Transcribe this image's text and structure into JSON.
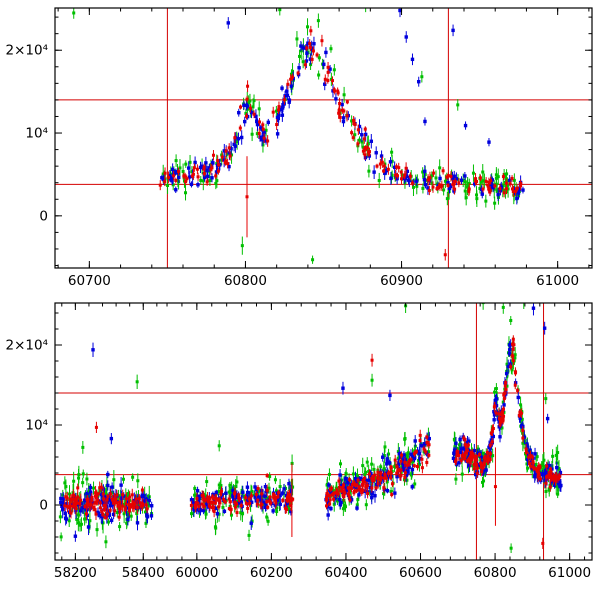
{
  "figure": {
    "bg": "#ffffff",
    "accent_red": "#d40000",
    "axis_color": "#000000"
  },
  "series": [
    {
      "name": "green",
      "color": "#00bf00",
      "sigma_scale": 1.7,
      "err_scale": 1.25,
      "size": 3
    },
    {
      "name": "blue",
      "color": "#0000dd",
      "sigma_scale": 1.1,
      "err_scale": 1.0,
      "size": 3.4
    },
    {
      "name": "red",
      "color": "#e60000",
      "sigma_scale": 0.75,
      "err_scale": 0.8,
      "size": 3
    }
  ],
  "chart_data": [
    {
      "type": "scatter",
      "panel": "top",
      "title": "",
      "x_segments": [
        {
          "xmin": 60678,
          "xmax": 61022,
          "f0": 0,
          "f1": 1
        }
      ],
      "x_ticks": [
        {
          "v": 60700,
          "label": "60700"
        },
        {
          "v": 60800,
          "label": "60800"
        },
        {
          "v": 60900,
          "label": "60900"
        },
        {
          "v": 61000,
          "label": "61000"
        }
      ],
      "x_minor_step": 20,
      "y": {
        "min": -6300,
        "max": 25100,
        "minor_step": 2000,
        "ticks": [
          {
            "v": 0,
            "label": "0"
          },
          {
            "v": 10000,
            "label": "10⁴"
          },
          {
            "v": 20000,
            "label": "2×10⁴"
          }
        ]
      },
      "ref_lines": {
        "horizontal": [
          14000,
          3800
        ],
        "vertical": [
          60750,
          60930
        ]
      },
      "seed": 7,
      "clusters": [
        {
          "x0": 60745,
          "x1": 60978,
          "n": 165,
          "sigma": 480,
          "err": [
            350,
            900
          ],
          "anchors": [
            [
              60745,
              4600
            ],
            [
              60762,
              4800
            ],
            [
              60775,
              5200
            ],
            [
              60785,
              6200
            ],
            [
              60792,
              8500
            ],
            [
              60797,
              11500
            ],
            [
              60801,
              13300
            ],
            [
              60805,
              11800
            ],
            [
              60810,
              9800
            ],
            [
              60816,
              10600
            ],
            [
              60822,
              12800
            ],
            [
              60828,
              15200
            ],
            [
              60834,
              17800
            ],
            [
              60839,
              20300
            ],
            [
              60843,
              20900
            ],
            [
              60847,
              19900
            ],
            [
              60852,
              17600
            ],
            [
              60858,
              14800
            ],
            [
              60864,
              12200
            ],
            [
              60871,
              9900
            ],
            [
              60878,
              8100
            ],
            [
              60885,
              6600
            ],
            [
              60892,
              5600
            ],
            [
              60900,
              4800
            ],
            [
              60910,
              4300
            ],
            [
              60922,
              4000
            ],
            [
              60935,
              3900
            ],
            [
              60950,
              3700
            ],
            [
              60965,
              3500
            ],
            [
              60978,
              3400
            ]
          ]
        }
      ],
      "outliers": {
        "green": [
          [
            60690,
            24500,
            700
          ],
          [
            60822,
            24900,
            700
          ],
          [
            60877,
            25400,
            800
          ],
          [
            60913,
            16800,
            700
          ],
          [
            60936,
            13400,
            700
          ],
          [
            60798,
            -3600,
            1100
          ],
          [
            60843,
            -5300,
            500
          ]
        ],
        "blue": [
          [
            60789,
            23300,
            700
          ],
          [
            60800,
            25900,
            800
          ],
          [
            60899,
            24800,
            800
          ],
          [
            60903,
            21600,
            700
          ],
          [
            60907,
            18900,
            700
          ],
          [
            60911,
            16200,
            600
          ],
          [
            60915,
            11400,
            500
          ],
          [
            60933,
            22400,
            700
          ],
          [
            60941,
            10900,
            500
          ],
          [
            60956,
            8900,
            500
          ]
        ],
        "red": [
          [
            60801,
            2300,
            4900
          ],
          [
            60928,
            -4700,
            700
          ]
        ]
      }
    },
    {
      "type": "scatter",
      "panel": "bottom",
      "title": "",
      "x_segments": [
        {
          "xmin": 58140,
          "xmax": 58470,
          "f0": 0,
          "f1": 0.2086
        },
        {
          "xmin": 59920,
          "xmax": 61060,
          "f0": 0.2086,
          "f1": 1
        }
      ],
      "x_ticks": [
        {
          "v": 58200,
          "label": "58200"
        },
        {
          "v": 58400,
          "label": "58400"
        },
        {
          "v": 60000,
          "label": "60000"
        },
        {
          "v": 60200,
          "label": "60200"
        },
        {
          "v": 60400,
          "label": "60400"
        },
        {
          "v": 60600,
          "label": "60600"
        },
        {
          "v": 60800,
          "label": "60800"
        },
        {
          "v": 61000,
          "label": "61000"
        }
      ],
      "x_minor_step": 40,
      "y": {
        "min": -6875,
        "max": 25250,
        "minor_step": 2000,
        "ticks": [
          {
            "v": 0,
            "label": "0"
          },
          {
            "v": 10000,
            "label": "10⁴"
          },
          {
            "v": 20000,
            "label": "2×10⁴"
          }
        ]
      },
      "ref_lines": {
        "horizontal": [
          14000,
          3800
        ],
        "vertical": [
          60750,
          60930
        ]
      },
      "seed": 11,
      "clusters": [
        {
          "x0": 58155,
          "x1": 58425,
          "n": 105,
          "sigma": 1050,
          "err": [
            350,
            1100
          ],
          "base": 100
        },
        {
          "x0": 59985,
          "x1": 60258,
          "n": 95,
          "sigma": 800,
          "err": [
            300,
            900
          ],
          "anchors": [
            [
              59985,
              300
            ],
            [
              60060,
              500
            ],
            [
              60140,
              700
            ],
            [
              60200,
              800
            ],
            [
              60258,
              1000
            ]
          ]
        },
        {
          "x0": 60345,
          "x1": 60624,
          "n": 115,
          "sigma": 850,
          "err": [
            300,
            900
          ],
          "anchors": [
            [
              60345,
              1300
            ],
            [
              60400,
              1900
            ],
            [
              60450,
              2600
            ],
            [
              60500,
              3500
            ],
            [
              60545,
              4600
            ],
            [
              60580,
              5600
            ],
            [
              60605,
              6500
            ],
            [
              60624,
              7200
            ]
          ]
        },
        {
          "x0": 60688,
          "x1": 60978,
          "n": 150,
          "sigma": 560,
          "err": [
            350,
            900
          ],
          "anchors": [
            [
              60688,
              5400
            ],
            [
              60700,
              6200
            ],
            [
              60710,
              7000
            ],
            [
              60718,
              7200
            ],
            [
              60728,
              6400
            ],
            [
              60740,
              5500
            ],
            [
              60752,
              5000
            ],
            [
              60764,
              4900
            ],
            [
              60776,
              5300
            ],
            [
              60786,
              6400
            ],
            [
              60793,
              8800
            ],
            [
              60798,
              11800
            ],
            [
              60802,
              13200
            ],
            [
              60807,
              11500
            ],
            [
              60813,
              9900
            ],
            [
              60821,
              11600
            ],
            [
              60829,
              15100
            ],
            [
              60837,
              18600
            ],
            [
              60842,
              20500
            ],
            [
              60847,
              19700
            ],
            [
              60853,
              17300
            ],
            [
              60859,
              14600
            ],
            [
              60866,
              11900
            ],
            [
              60873,
              9600
            ],
            [
              60881,
              7700
            ],
            [
              60889,
              6300
            ],
            [
              60897,
              5300
            ],
            [
              60907,
              4600
            ],
            [
              60919,
              4100
            ],
            [
              60933,
              3900
            ],
            [
              60951,
              3600
            ],
            [
              60966,
              3400
            ],
            [
              60978,
              3300
            ]
          ]
        }
      ],
      "outliers": {
        "green": [
          [
            58382,
            15400,
            900
          ],
          [
            58222,
            7200,
            800
          ],
          [
            58290,
            -4600,
            800
          ],
          [
            60060,
            7400,
            700
          ],
          [
            60140,
            -3800,
            700
          ],
          [
            60470,
            15600,
            800
          ],
          [
            60560,
            24900,
            900
          ],
          [
            60768,
            25300,
            900
          ],
          [
            60822,
            24700,
            800
          ],
          [
            60877,
            25400,
            900
          ],
          [
            60936,
            13300,
            700
          ],
          [
            60843,
            -5400,
            600
          ]
        ],
        "blue": [
          [
            58252,
            19400,
            900
          ],
          [
            58306,
            8300,
            700
          ],
          [
            58200,
            -3900,
            700
          ],
          [
            60392,
            14600,
            800
          ],
          [
            60518,
            13700,
            700
          ],
          [
            60800,
            25700,
            800
          ],
          [
            60903,
            24600,
            900
          ],
          [
            60933,
            22100,
            800
          ],
          [
            60941,
            10800,
            600
          ]
        ],
        "red": [
          [
            58262,
            9700,
            700
          ],
          [
            60255,
            600,
            4600
          ],
          [
            60470,
            18100,
            800
          ],
          [
            60801,
            2300,
            4900
          ],
          [
            60928,
            -4800,
            700
          ]
        ]
      }
    }
  ]
}
